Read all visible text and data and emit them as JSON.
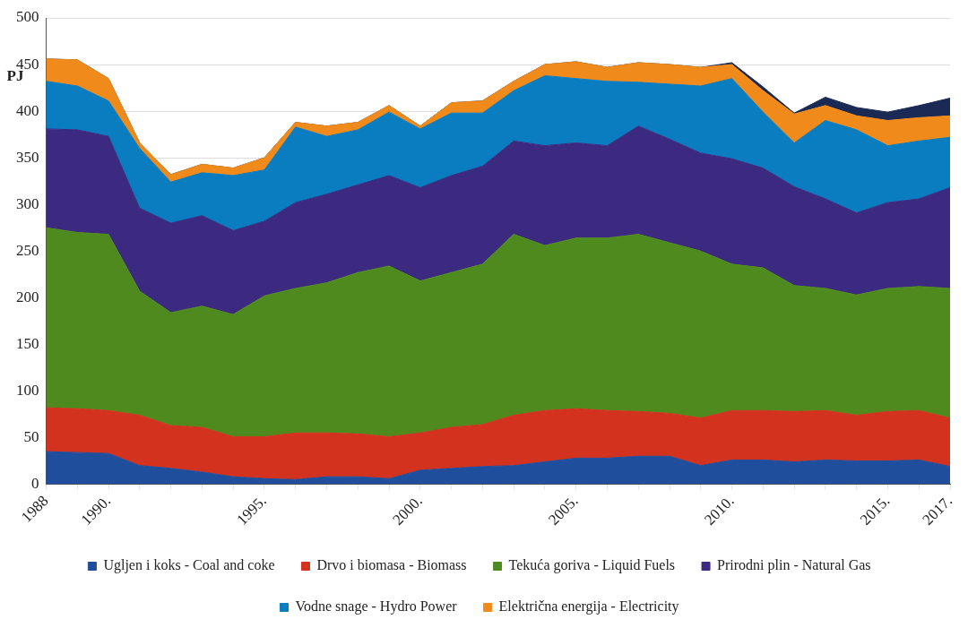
{
  "chart_data": {
    "type": "area",
    "stacked": true,
    "ylabel": "PJ",
    "categories": [
      "1988",
      null,
      "1990.",
      null,
      null,
      null,
      null,
      "1995.",
      null,
      null,
      null,
      null,
      "2000.",
      null,
      null,
      null,
      null,
      "2005.",
      null,
      null,
      null,
      null,
      "2010.",
      null,
      null,
      null,
      null,
      "2015.",
      null,
      "2017."
    ],
    "ylim": [
      0,
      500
    ],
    "yticks": [
      0,
      50,
      100,
      150,
      200,
      250,
      300,
      350,
      400,
      450,
      500
    ],
    "grid": "y",
    "legend": "bottom",
    "series": [
      {
        "name": "Ugljen i koks - Coal and coke",
        "color": "#1f4e9c",
        "values": [
          35,
          34,
          33,
          20,
          17,
          13,
          8,
          6,
          5,
          8,
          8,
          6,
          15,
          17,
          19,
          20,
          24,
          28,
          28,
          30,
          30,
          20,
          26,
          26,
          24,
          26,
          25,
          25,
          26,
          19
        ]
      },
      {
        "name": "Drvo i biomasa - Biomass",
        "color": "#d2321e",
        "values": [
          47,
          47,
          46,
          54,
          46,
          48,
          43,
          45,
          50,
          47,
          46,
          45,
          40,
          44,
          45,
          54,
          55,
          53,
          51,
          48,
          46,
          51,
          53,
          53,
          54,
          53,
          49,
          53,
          53,
          52
        ]
      },
      {
        "name": "Tekuća goriva - Liquid Fuels",
        "color": "#4f8a1e",
        "values": [
          193,
          189,
          189,
          133,
          121,
          130,
          131,
          151,
          155,
          161,
          173,
          183,
          163,
          166,
          172,
          194,
          177,
          183,
          185,
          190,
          183,
          179,
          157,
          153,
          135,
          131,
          129,
          132,
          133,
          139
        ]
      },
      {
        "name": "Prirodni plin - Natural Gas",
        "color": "#3b2a80",
        "values": [
          106,
          110,
          105,
          89,
          96,
          97,
          90,
          80,
          92,
          95,
          94,
          97,
          100,
          104,
          105,
          100,
          107,
          102,
          99,
          116,
          111,
          105,
          113,
          107,
          106,
          96,
          88,
          92,
          94,
          108
        ]
      },
      {
        "name": "Vodne snage - Hydro Power",
        "color": "#0a7cc0",
        "values": [
          51,
          47,
          38,
          64,
          44,
          46,
          59,
          55,
          81,
          62,
          59,
          68,
          63,
          67,
          57,
          54,
          75,
          69,
          69,
          47,
          59,
          72,
          86,
          60,
          47,
          84,
          89,
          61,
          62,
          54
        ]
      },
      {
        "name": "Električna energija - Electricity",
        "color": "#f08a1a",
        "values": [
          24,
          28,
          24,
          6,
          8,
          9,
          8,
          13,
          5,
          11,
          8,
          7,
          3,
          11,
          13,
          10,
          12,
          18,
          15,
          21,
          21,
          20,
          15,
          23,
          31,
          16,
          15,
          27,
          25,
          23
        ]
      },
      {
        "color": "#1a2a55",
        "values": [
          0,
          0,
          0,
          0,
          0,
          0,
          0,
          0,
          0,
          0,
          0,
          0,
          0,
          0,
          0,
          0,
          0,
          0,
          0,
          0,
          0,
          0,
          2,
          4,
          1,
          9,
          9,
          9,
          13,
          19
        ]
      }
    ]
  }
}
